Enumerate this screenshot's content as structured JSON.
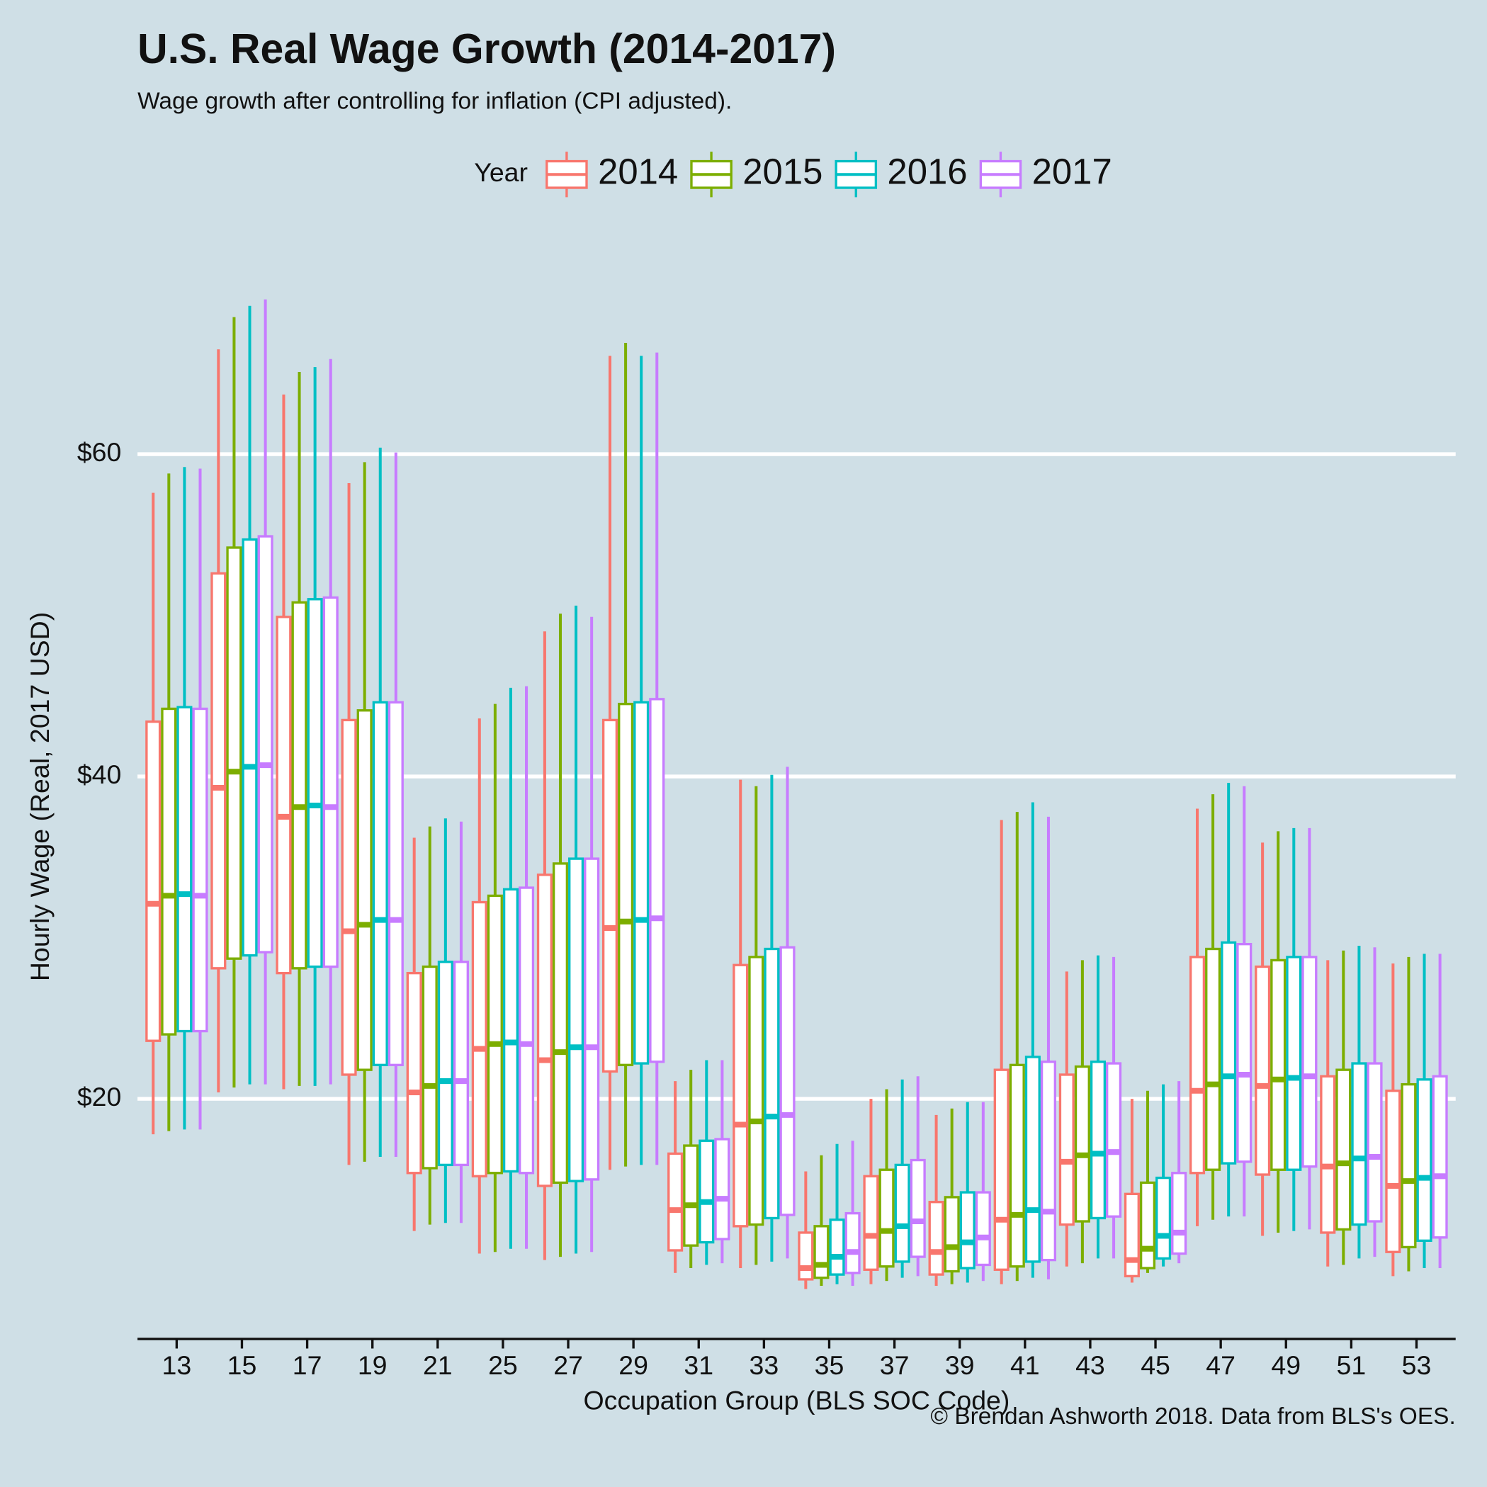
{
  "chart_data": {
    "type": "box",
    "title": "U.S. Real Wage Growth (2014-2017)",
    "subtitle": "Wage growth after controlling for inflation (CPI adjusted).",
    "x_label": "Occupation Group (BLS SOC Code)",
    "y_label": "Hourly Wage (Real, 2017 USD)",
    "caption": "© Brendan Ashworth 2018. Data from BLS's OES.",
    "legend_title": "Year",
    "legend_position": "top",
    "grid": true,
    "ylim": [
      5.1,
      70.7
    ],
    "yticks": [
      {
        "value": 20,
        "label": "$20"
      },
      {
        "value": 40,
        "label": "$40"
      },
      {
        "value": 60,
        "label": "$60"
      }
    ],
    "categories": [
      "13",
      "15",
      "17",
      "19",
      "21",
      "25",
      "27",
      "29",
      "31",
      "33",
      "35",
      "37",
      "39",
      "41",
      "43",
      "45",
      "47",
      "49",
      "51",
      "53"
    ],
    "series": [
      {
        "name": "2014",
        "color": "#F8766D",
        "low": [
          17.8,
          20.4,
          20.6,
          15.9,
          11.8,
          10.4,
          10.0,
          15.6,
          9.2,
          9.5,
          8.2,
          8.5,
          8.4,
          8.5,
          9.6,
          8.6,
          12.1,
          11.5,
          9.6,
          9.0
        ],
        "q1": [
          23.6,
          28.1,
          27.8,
          21.5,
          15.4,
          15.2,
          14.6,
          21.7,
          10.6,
          12.1,
          8.8,
          9.4,
          9.1,
          9.4,
          12.2,
          9.0,
          15.4,
          15.3,
          11.7,
          10.5
        ],
        "median": [
          32.1,
          39.3,
          37.5,
          30.4,
          20.4,
          23.1,
          22.4,
          30.6,
          13.1,
          18.4,
          9.5,
          11.5,
          10.5,
          12.5,
          16.1,
          10.0,
          20.5,
          20.8,
          15.8,
          14.6
        ],
        "q3": [
          43.4,
          52.6,
          49.9,
          43.5,
          27.8,
          32.2,
          33.9,
          43.5,
          16.6,
          28.3,
          11.7,
          15.2,
          13.6,
          21.8,
          21.5,
          14.1,
          28.8,
          28.2,
          21.4,
          20.5
        ],
        "high": [
          57.6,
          66.5,
          63.7,
          58.2,
          36.2,
          43.6,
          49.0,
          66.1,
          21.1,
          39.8,
          15.5,
          20.0,
          19.0,
          37.3,
          27.9,
          20.0,
          38.0,
          35.9,
          28.6,
          28.4
        ]
      },
      {
        "name": "2015",
        "color": "#7CAE00",
        "low": [
          18.0,
          20.7,
          20.8,
          16.1,
          12.2,
          10.5,
          10.2,
          15.8,
          9.5,
          9.7,
          8.4,
          8.7,
          8.5,
          8.7,
          9.8,
          9.2,
          12.5,
          11.7,
          9.7,
          9.3
        ],
        "q1": [
          24.0,
          28.7,
          28.1,
          21.8,
          15.7,
          15.4,
          14.8,
          22.1,
          10.9,
          12.2,
          8.9,
          9.6,
          9.3,
          9.6,
          12.4,
          9.5,
          15.6,
          15.6,
          11.9,
          10.8
        ],
        "median": [
          32.6,
          40.3,
          38.1,
          30.8,
          20.8,
          23.4,
          22.9,
          31.0,
          13.4,
          18.6,
          9.7,
          11.8,
          10.8,
          12.8,
          16.5,
          10.7,
          20.9,
          21.2,
          16.0,
          14.9
        ],
        "q3": [
          44.2,
          54.2,
          50.8,
          44.1,
          28.2,
          32.6,
          34.6,
          44.5,
          17.1,
          28.8,
          12.1,
          15.6,
          13.9,
          22.1,
          22.0,
          14.8,
          29.3,
          28.6,
          21.8,
          20.9
        ],
        "high": [
          58.8,
          68.5,
          65.1,
          59.5,
          36.9,
          44.5,
          50.1,
          66.9,
          21.8,
          39.4,
          16.5,
          20.6,
          19.4,
          37.8,
          28.6,
          20.5,
          38.9,
          36.6,
          29.2,
          28.8
        ]
      },
      {
        "name": "2016",
        "color": "#00BFC4",
        "low": [
          18.1,
          20.9,
          20.8,
          16.4,
          12.3,
          10.7,
          10.4,
          15.9,
          9.7,
          9.9,
          8.5,
          8.9,
          8.6,
          8.9,
          10.1,
          9.6,
          12.7,
          11.8,
          10.1,
          9.5
        ],
        "q1": [
          24.2,
          28.9,
          28.2,
          22.1,
          15.9,
          15.5,
          14.9,
          22.2,
          11.1,
          12.6,
          9.1,
          9.9,
          9.5,
          9.9,
          12.6,
          10.1,
          16.0,
          15.6,
          12.2,
          11.2
        ],
        "median": [
          32.7,
          40.6,
          38.2,
          31.1,
          21.1,
          23.5,
          23.2,
          31.1,
          13.6,
          18.9,
          10.2,
          12.1,
          11.1,
          13.1,
          16.6,
          11.5,
          21.4,
          21.3,
          16.3,
          15.1
        ],
        "q3": [
          44.3,
          54.7,
          51.0,
          44.6,
          28.5,
          33.0,
          34.9,
          44.6,
          17.4,
          29.3,
          12.5,
          15.9,
          14.2,
          22.6,
          22.3,
          15.1,
          29.7,
          28.8,
          22.2,
          21.2
        ],
        "high": [
          59.2,
          69.2,
          65.4,
          60.4,
          37.4,
          45.5,
          50.6,
          66.1,
          22.4,
          40.1,
          17.2,
          21.2,
          19.8,
          38.4,
          28.9,
          20.9,
          39.6,
          36.8,
          29.5,
          29.0
        ]
      },
      {
        "name": "2017",
        "color": "#C77CFF",
        "low": [
          18.1,
          20.9,
          20.9,
          16.4,
          12.3,
          10.7,
          10.5,
          15.9,
          9.8,
          10.1,
          8.4,
          9.0,
          8.7,
          8.8,
          10.1,
          9.8,
          12.7,
          11.9,
          10.2,
          9.5
        ],
        "q1": [
          24.2,
          29.1,
          28.2,
          22.1,
          15.9,
          15.4,
          15.0,
          22.3,
          11.3,
          12.8,
          9.2,
          10.2,
          9.7,
          10.0,
          12.7,
          10.4,
          16.1,
          15.8,
          12.4,
          11.4
        ],
        "median": [
          32.6,
          40.7,
          38.1,
          31.1,
          21.1,
          23.4,
          23.2,
          31.2,
          13.8,
          19.0,
          10.5,
          12.4,
          11.4,
          13.0,
          16.7,
          11.7,
          21.5,
          21.4,
          16.4,
          15.2
        ],
        "q3": [
          44.2,
          54.9,
          51.1,
          44.6,
          28.5,
          33.1,
          34.9,
          44.8,
          17.5,
          29.4,
          12.9,
          16.2,
          14.2,
          22.3,
          22.2,
          15.4,
          29.6,
          28.8,
          22.2,
          21.4
        ],
        "high": [
          59.1,
          69.6,
          65.9,
          60.1,
          37.2,
          45.6,
          49.9,
          66.3,
          22.4,
          40.6,
          17.4,
          21.4,
          19.8,
          37.5,
          28.8,
          21.1,
          39.4,
          36.8,
          29.4,
          29.0
        ]
      }
    ]
  }
}
